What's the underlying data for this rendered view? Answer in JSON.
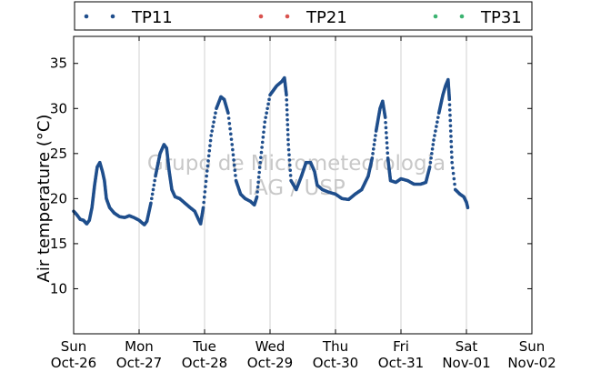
{
  "chart_data": {
    "type": "scatter",
    "ylabel": "Air temperature (°C)",
    "xlabel": "",
    "title": "",
    "ylim": [
      5,
      38
    ],
    "y_ticks": [
      10,
      15,
      20,
      25,
      30,
      35
    ],
    "x_ticks": [
      {
        "day": "Sun",
        "date": "Oct-26"
      },
      {
        "day": "Mon",
        "date": "Oct-27"
      },
      {
        "day": "Tue",
        "date": "Oct-28"
      },
      {
        "day": "Wed",
        "date": "Oct-29"
      },
      {
        "day": "Thu",
        "date": "Oct-30"
      },
      {
        "day": "Fri",
        "date": "Oct-31"
      },
      {
        "day": "Sat",
        "date": "Nov-01"
      },
      {
        "day": "Sun",
        "date": "Nov-02"
      }
    ],
    "x_range_days": [
      0,
      7
    ],
    "grid": "vertical",
    "legend_position": "top",
    "watermark": [
      "Grupo de Micrometeorologia",
      "IAG / USP"
    ],
    "series": [
      {
        "name": "TP11",
        "color": "#1f4e8c",
        "keypoints": [
          [
            0.0,
            18.6
          ],
          [
            0.05,
            18.2
          ],
          [
            0.1,
            17.7
          ],
          [
            0.15,
            17.6
          ],
          [
            0.2,
            17.2
          ],
          [
            0.24,
            17.6
          ],
          [
            0.28,
            19.0
          ],
          [
            0.32,
            21.5
          ],
          [
            0.36,
            23.5
          ],
          [
            0.4,
            24.0
          ],
          [
            0.44,
            23.0
          ],
          [
            0.47,
            22.0
          ],
          [
            0.5,
            20.0
          ],
          [
            0.55,
            19.0
          ],
          [
            0.62,
            18.4
          ],
          [
            0.7,
            18.0
          ],
          [
            0.78,
            17.9
          ],
          [
            0.85,
            18.1
          ],
          [
            0.92,
            17.9
          ],
          [
            1.0,
            17.6
          ],
          [
            1.08,
            17.1
          ],
          [
            1.12,
            17.5
          ],
          [
            1.18,
            19.5
          ],
          [
            1.25,
            22.5
          ],
          [
            1.32,
            25.0
          ],
          [
            1.38,
            26.0
          ],
          [
            1.42,
            25.6
          ],
          [
            1.46,
            23.0
          ],
          [
            1.5,
            21.0
          ],
          [
            1.55,
            20.2
          ],
          [
            1.62,
            20.0
          ],
          [
            1.7,
            19.5
          ],
          [
            1.78,
            19.0
          ],
          [
            1.85,
            18.6
          ],
          [
            1.9,
            17.8
          ],
          [
            1.94,
            17.2
          ],
          [
            1.98,
            19.0
          ],
          [
            2.03,
            22.5
          ],
          [
            2.1,
            27.0
          ],
          [
            2.18,
            30.0
          ],
          [
            2.25,
            31.3
          ],
          [
            2.3,
            31.0
          ],
          [
            2.36,
            29.5
          ],
          [
            2.42,
            26.0
          ],
          [
            2.48,
            22.0
          ],
          [
            2.55,
            20.5
          ],
          [
            2.62,
            20.0
          ],
          [
            2.7,
            19.7
          ],
          [
            2.76,
            19.3
          ],
          [
            2.8,
            20.2
          ],
          [
            2.85,
            24.0
          ],
          [
            2.92,
            28.5
          ],
          [
            3.0,
            31.5
          ],
          [
            3.1,
            32.5
          ],
          [
            3.18,
            33.0
          ],
          [
            3.22,
            33.4
          ],
          [
            3.25,
            31.5
          ],
          [
            3.28,
            26.0
          ],
          [
            3.32,
            22.0
          ],
          [
            3.4,
            21.0
          ],
          [
            3.48,
            22.5
          ],
          [
            3.55,
            24.0
          ],
          [
            3.62,
            24.0
          ],
          [
            3.68,
            23.0
          ],
          [
            3.72,
            21.5
          ],
          [
            3.8,
            21.0
          ],
          [
            3.9,
            20.7
          ],
          [
            4.0,
            20.5
          ],
          [
            4.1,
            20.0
          ],
          [
            4.2,
            19.9
          ],
          [
            4.3,
            20.5
          ],
          [
            4.4,
            21.0
          ],
          [
            4.5,
            22.5
          ],
          [
            4.56,
            24.5
          ],
          [
            4.62,
            27.5
          ],
          [
            4.68,
            30.0
          ],
          [
            4.72,
            30.8
          ],
          [
            4.76,
            29.0
          ],
          [
            4.8,
            24.5
          ],
          [
            4.84,
            22.0
          ],
          [
            4.92,
            21.8
          ],
          [
            5.0,
            22.2
          ],
          [
            5.1,
            22.0
          ],
          [
            5.2,
            21.6
          ],
          [
            5.3,
            21.6
          ],
          [
            5.38,
            21.8
          ],
          [
            5.44,
            23.5
          ],
          [
            5.5,
            26.5
          ],
          [
            5.58,
            29.5
          ],
          [
            5.64,
            31.5
          ],
          [
            5.68,
            32.5
          ],
          [
            5.72,
            33.2
          ],
          [
            5.74,
            31.0
          ],
          [
            5.78,
            24.0
          ],
          [
            5.83,
            21.0
          ],
          [
            5.9,
            20.5
          ],
          [
            5.96,
            20.2
          ],
          [
            6.0,
            19.6
          ],
          [
            6.02,
            19.0
          ]
        ]
      },
      {
        "name": "TP21",
        "color": "#d9534f",
        "keypoints": []
      },
      {
        "name": "TP31",
        "color": "#3cb371",
        "keypoints": []
      }
    ]
  }
}
